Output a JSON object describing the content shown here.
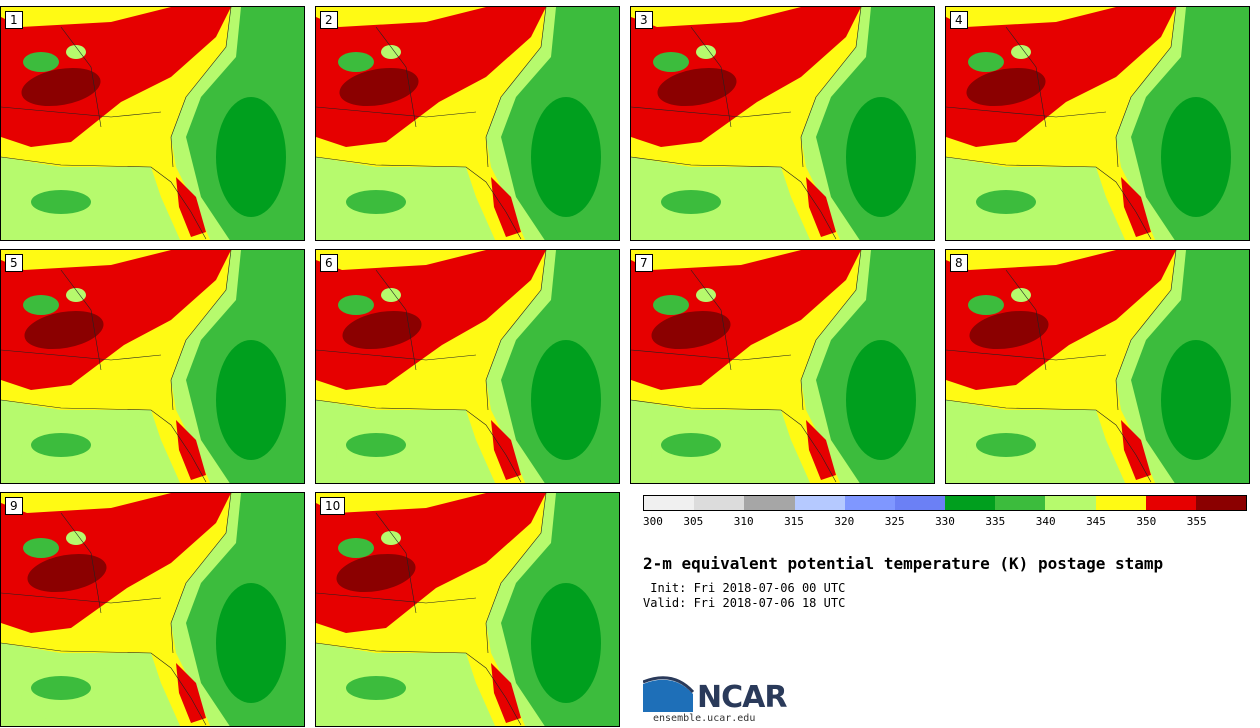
{
  "members": [
    {
      "label": "1"
    },
    {
      "label": "2"
    },
    {
      "label": "3"
    },
    {
      "label": "4"
    },
    {
      "label": "5"
    },
    {
      "label": "6"
    },
    {
      "label": "7"
    },
    {
      "label": "8"
    },
    {
      "label": "9"
    },
    {
      "label": "10"
    }
  ],
  "colorbar": {
    "ticks": [
      "300",
      "305",
      "310",
      "315",
      "320",
      "325",
      "330",
      "335",
      "340",
      "345",
      "350",
      "355"
    ],
    "colors": [
      "#f0f0f0",
      "#dcdcdc",
      "#a6a6a6",
      "#b5c9ff",
      "#7f97ff",
      "#6b80f5",
      "#009f1e",
      "#3cbc3d",
      "#b6fa6d",
      "#fffa14",
      "#e60000",
      "#8b0000"
    ]
  },
  "title": "2-m equivalent potential temperature (K) postage stamp",
  "init": " Init: Fri 2018-07-06 00 UTC",
  "valid": "Valid: Fri 2018-07-06 18 UTC",
  "logo": {
    "text": "NCAR",
    "site": "ensemble.ucar.edu"
  }
}
